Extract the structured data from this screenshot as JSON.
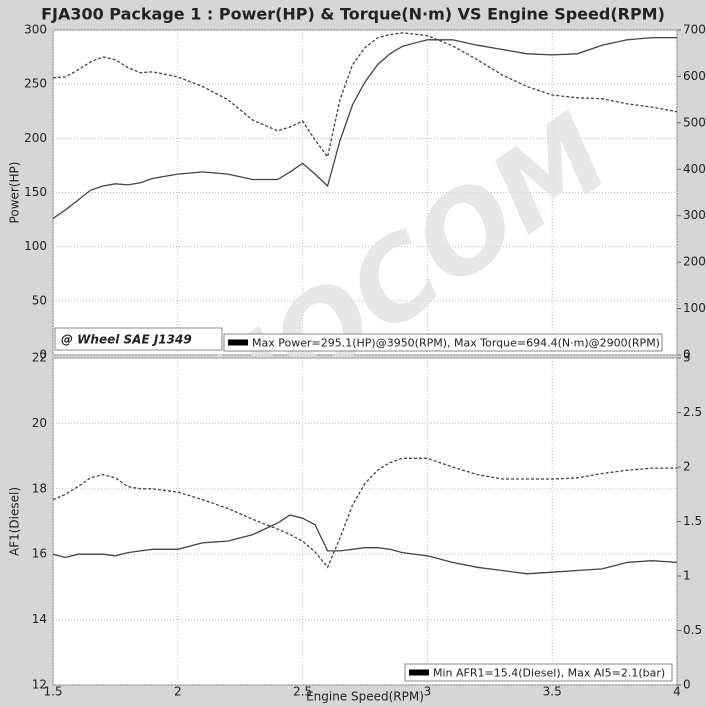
{
  "title": "FJA300 Package 1 : Power(HP) & Torque(N·m) VS Engine Speed(RPM)",
  "watermark": "DYNOCOM",
  "chart_data": [
    {
      "type": "line",
      "ylabel": "Power(HP)",
      "x": [
        1.5,
        1.55,
        1.6,
        1.65,
        1.7,
        1.75,
        1.8,
        1.85,
        1.9,
        2,
        2.1,
        2.2,
        2.3,
        2.4,
        2.45,
        2.5,
        2.55,
        2.6,
        2.65,
        2.7,
        2.75,
        2.8,
        2.85,
        2.9,
        3,
        3.1,
        3.2,
        3.3,
        3.4,
        3.5,
        3.6,
        3.7,
        3.8,
        3.9,
        4
      ],
      "series": [
        {
          "color": "#444444",
          "line_style": "solid",
          "axis": "y",
          "values": [
            126,
            134,
            143,
            152,
            156,
            158,
            157,
            159,
            163,
            167,
            169,
            167,
            162,
            162,
            169,
            177,
            167,
            156,
            198,
            231,
            252,
            268,
            278,
            285,
            291,
            291,
            286,
            282,
            278,
            277,
            278,
            286,
            291,
            293,
            293
          ]
        },
        {
          "color": "#444444",
          "line_style": "dashed",
          "axis": "y2",
          "values": [
            597,
            599,
            614,
            631,
            642,
            636,
            619,
            608,
            610,
            599,
            578,
            550,
            506,
            483,
            491,
            504,
            463,
            427,
            550,
            625,
            662,
            683,
            690,
            694,
            688,
            666,
            636,
            603,
            578,
            560,
            554,
            552,
            541,
            534,
            524
          ]
        }
      ],
      "xlim": [
        1.5,
        4
      ],
      "ylim": [
        0,
        300
      ],
      "yticks": [
        0,
        50,
        100,
        150,
        200,
        250,
        300
      ],
      "y2lim": [
        0,
        700
      ],
      "y2ticks": [
        0,
        100,
        200,
        300,
        400,
        500,
        600,
        700
      ],
      "grid": true,
      "annotations": [
        "@ Wheel SAE J1349",
        "Max Power=295.1(HP)@3950(RPM), Max Torque=694.4(N·m)@2900(RPM)"
      ]
    },
    {
      "type": "line",
      "ylabel": "AF1(Diesel)",
      "xlabel": "Engine Speed(RPM)",
      "x": [
        1.5,
        1.55,
        1.6,
        1.65,
        1.7,
        1.75,
        1.8,
        1.85,
        1.9,
        2,
        2.1,
        2.2,
        2.3,
        2.4,
        2.45,
        2.5,
        2.55,
        2.6,
        2.65,
        2.7,
        2.75,
        2.8,
        2.85,
        2.9,
        3,
        3.1,
        3.2,
        3.3,
        3.4,
        3.5,
        3.6,
        3.7,
        3.8,
        3.9,
        4
      ],
      "series": [
        {
          "color": "#444444",
          "line_style": "solid",
          "axis": "y",
          "values": [
            16,
            15.9,
            16,
            16,
            16,
            15.95,
            16.05,
            16.1,
            16.15,
            16.15,
            16.35,
            16.4,
            16.6,
            16.95,
            17.2,
            17.1,
            16.9,
            16.1,
            16.1,
            16.15,
            16.2,
            16.2,
            16.15,
            16.05,
            15.95,
            15.75,
            15.6,
            15.5,
            15.4,
            15.45,
            15.5,
            15.55,
            15.75,
            15.8,
            15.75
          ]
        },
        {
          "color": "#444444",
          "line_style": "dashed",
          "axis": "y2",
          "values": [
            1.7,
            1.75,
            1.82,
            1.9,
            1.93,
            1.9,
            1.82,
            1.8,
            1.8,
            1.77,
            1.7,
            1.62,
            1.52,
            1.43,
            1.38,
            1.32,
            1.22,
            1.08,
            1.35,
            1.65,
            1.85,
            1.97,
            2.04,
            2.08,
            2.08,
            2,
            1.93,
            1.89,
            1.89,
            1.89,
            1.9,
            1.94,
            1.97,
            1.99,
            1.99
          ]
        }
      ],
      "xlim": [
        1.5,
        4
      ],
      "xticks": [
        1.5,
        2,
        2.5,
        3,
        3.5,
        4
      ],
      "ylim": [
        12,
        22
      ],
      "yticks": [
        12,
        14,
        16,
        18,
        20,
        22
      ],
      "y2lim": [
        0,
        3
      ],
      "y2ticks": [
        0,
        0.5,
        1,
        1.5,
        2,
        2.5,
        3
      ],
      "grid": true,
      "annotations": [
        "Min AFR1=15.4(Diesel), Max AI5=2.1(bar)"
      ]
    }
  ]
}
